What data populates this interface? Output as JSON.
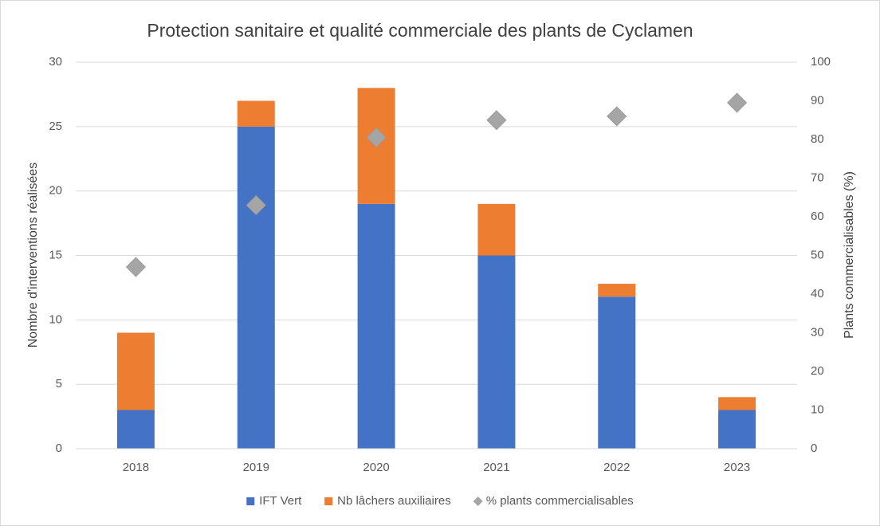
{
  "chart_data": {
    "type": "bar",
    "stacked": true,
    "title": "Protection sanitaire et qualité commerciale des plants de Cyclamen",
    "y_label": "Nombre d'interventions réalisées",
    "y2_label": "Plants commercialisables (%)",
    "categories": [
      "2018",
      "2019",
      "2020",
      "2021",
      "2022",
      "2023"
    ],
    "series": [
      {
        "name": "IFT Vert",
        "type": "bar",
        "color": "#4472c4",
        "values": [
          3,
          25,
          19,
          15,
          11.8,
          3
        ]
      },
      {
        "name": "Nb lâchers auxiliaires",
        "type": "bar",
        "color": "#ed7d31",
        "values": [
          6,
          2,
          9,
          4,
          1,
          1
        ]
      },
      {
        "name": "% plants commercialisables",
        "type": "scatter",
        "marker": "diamond",
        "axis": "y2",
        "color": "#a5a5a5",
        "values": [
          47,
          63,
          80.5,
          85,
          86,
          89.5
        ]
      }
    ],
    "ylim": [
      0,
      30
    ],
    "yticks": [
      0,
      5,
      10,
      15,
      20,
      25,
      30
    ],
    "y2lim": [
      0,
      100
    ],
    "y2ticks": [
      0,
      10,
      20,
      30,
      40,
      50,
      60,
      70,
      80,
      90,
      100
    ],
    "grid": true,
    "legend": "bottom"
  }
}
